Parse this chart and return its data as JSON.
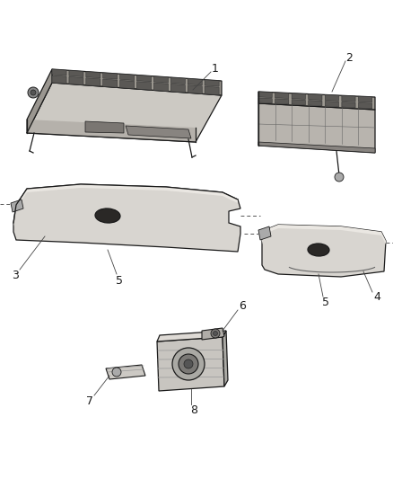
{
  "background_color": "#ffffff",
  "fig_width": 4.38,
  "fig_height": 5.33,
  "dpi": 100,
  "lc": "#1a1a1a",
  "lw": 0.9,
  "fill_panel": "#e8e6e2",
  "fill_grid": "#5a5855",
  "fill_dark": "#2a2826",
  "label_fontsize": 9,
  "label_color": "#1a1a1a"
}
